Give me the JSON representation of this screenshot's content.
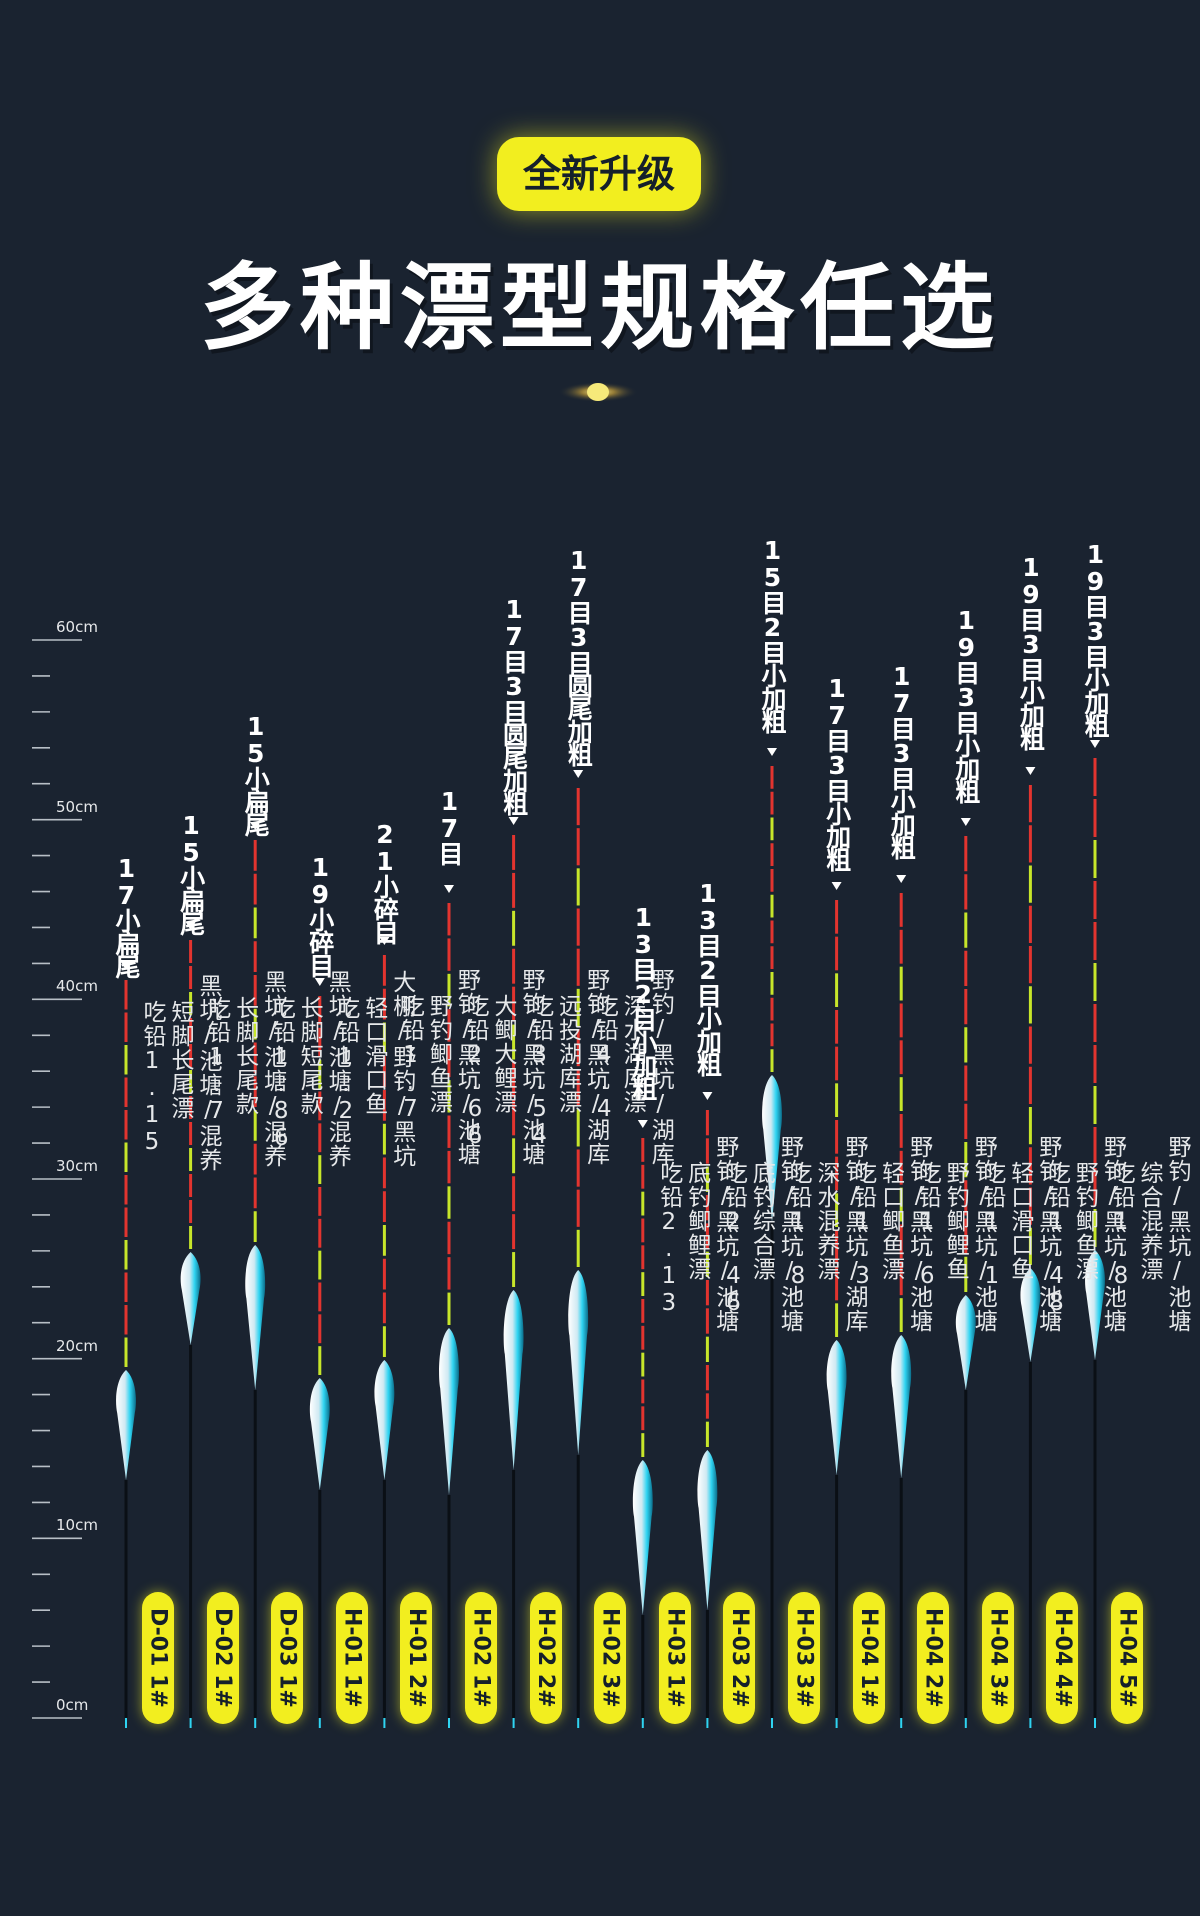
{
  "header": {
    "badge": "全新升级",
    "title": "多种漂型规格任选"
  },
  "ruler": {
    "labels": [
      "60cm",
      "50cm",
      "40cm",
      "30cm",
      "20cm",
      "10cm",
      "0cm"
    ]
  },
  "colors": {
    "accent": "#f2ee1f",
    "background": "#1a2330",
    "tip_red": "#e3342f",
    "tip_green": "#c7e62a",
    "body_cyan": "#2fd4f2"
  },
  "floats": [
    {
      "code": "D-01 1#",
      "spec": "17小扁尾",
      "use": "黑坑/池塘/混养",
      "type": "短脚长尾漂",
      "lead": "吃铅1.15"
    },
    {
      "code": "D-02 1#",
      "spec": "15小扁尾",
      "use": "黑坑/池塘/混养",
      "type": "长脚长尾款",
      "lead": "吃铅1.7"
    },
    {
      "code": "D-03 1#",
      "spec": "15小扁尾",
      "use": "黑坑/池塘/混养",
      "type": "长脚短尾款",
      "lead": "吃铅1.86"
    },
    {
      "code": "H-01 1#",
      "spec": "19小碎目",
      "use": "大棚/野钓/黑坑",
      "type": "轻口滑口鱼",
      "lead": "吃铅1.2"
    },
    {
      "code": "H-01 2#",
      "spec": "21小碎目",
      "use": "野钓/黑坑/池塘",
      "type": "野钓鲫鱼漂",
      "lead": "吃铅1.7"
    },
    {
      "code": "H-02 1#",
      "spec": "17目",
      "use": "野钓/黑坑/池塘",
      "type": "大鲫大鲤漂",
      "lead": "吃铅2.66"
    },
    {
      "code": "H-02 2#",
      "spec": "17目3目圆尾加粗",
      "use": "野钓/黑坑/湖库",
      "type": "远投湖库漂",
      "lead": "吃铅3.54"
    },
    {
      "code": "H-02 3#",
      "spec": "17目3目圆尾加粗",
      "use": "野钓/黑坑/湖库",
      "type": "深水湖库漂",
      "lead": "吃铅4.4"
    },
    {
      "code": "H-03 1#",
      "spec": "13目2目小加粗",
      "use": "野钓/黑坑/池塘",
      "type": "底钓鲫鲤漂",
      "lead": "吃铅2.13"
    },
    {
      "code": "H-03 2#",
      "spec": "13目2目小加粗",
      "use": "野钓/黑坑/池塘",
      "type": "底钓综合漂",
      "lead": "吃铅2.46"
    },
    {
      "code": "H-03 3#",
      "spec": "15目2目小加粗",
      "use": "野钓/黑坑/湖库",
      "type": "深水混养漂",
      "lead": "吃铅1.8"
    },
    {
      "code": "H-04 1#",
      "spec": "17目3目小加粗",
      "use": "野钓/黑坑/池塘",
      "type": "轻口鲫鱼漂",
      "lead": "吃铅1.3"
    },
    {
      "code": "H-04 2#",
      "spec": "17目3目小加粗",
      "use": "野钓/黑坑/池塘",
      "type": "野钓鲫鲤鱼",
      "lead": "吃铅1.6"
    },
    {
      "code": "H-04 3#",
      "spec": "19目3目小加粗",
      "use": "野钓/黑坑/池塘",
      "type": "轻口滑口鱼",
      "lead": "吃铅1.1"
    },
    {
      "code": "H-04 4#",
      "spec": "19目3目小加粗",
      "use": "野钓/黑坑/池塘",
      "type": "野钓鲫鱼漂",
      "lead": "吃铅1.48"
    },
    {
      "code": "H-04 5#",
      "spec": "19目3目小加粗",
      "use": "野钓/黑坑/池塘",
      "type": "综合混养漂",
      "lead": "吃铅1.8"
    }
  ]
}
